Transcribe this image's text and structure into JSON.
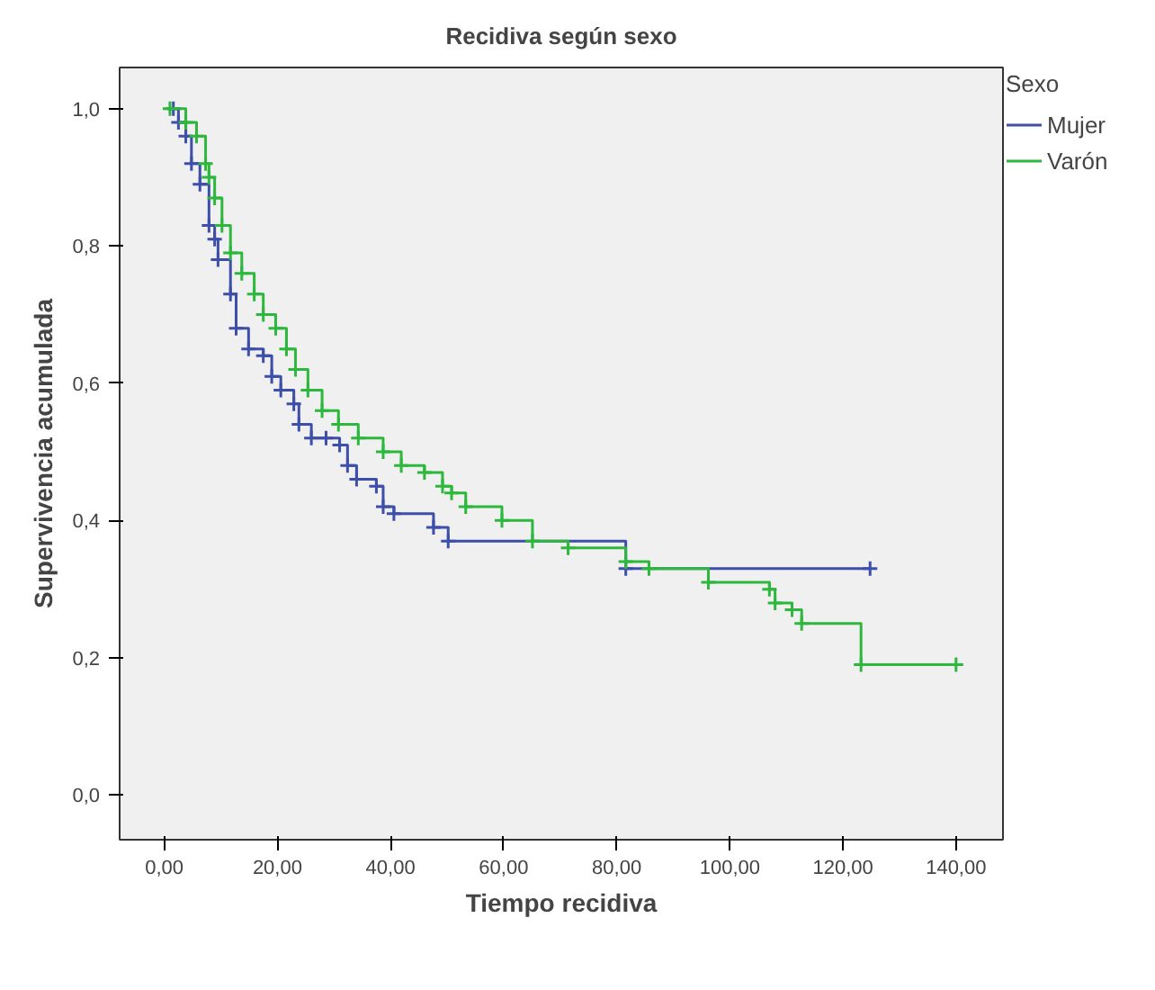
{
  "chart_data": {
    "type": "step",
    "title": "Recidiva según sexo",
    "xlabel": "Tiempo recidiva",
    "ylabel": "Supervivencia acumulada",
    "legend_title": "Sexo",
    "series": [
      {
        "name": "Mujer",
        "color": "#3d4fa8",
        "x": [
          1.6,
          2.5,
          3.8,
          4.8,
          6.3,
          7.9,
          8.9,
          9.5,
          11.7,
          12.7,
          14.9,
          17.5,
          19,
          20.6,
          22.9,
          23.8,
          26,
          28.6,
          31,
          32.4,
          34,
          37.5,
          38.7,
          40.6,
          47.6,
          50.2,
          81.6,
          124.8
        ],
        "values": [
          1.0,
          0.98,
          0.96,
          0.92,
          0.89,
          0.83,
          0.81,
          0.78,
          0.73,
          0.68,
          0.65,
          0.64,
          0.61,
          0.59,
          0.57,
          0.54,
          0.52,
          0.52,
          0.51,
          0.48,
          0.46,
          0.45,
          0.42,
          0.41,
          0.39,
          0.37,
          0.33,
          0.33
        ]
      },
      {
        "name": "Varón",
        "color": "#2db83d",
        "x": [
          1,
          3.8,
          5.7,
          7.3,
          7.9,
          8.9,
          10.2,
          11.7,
          13.7,
          15.9,
          17.5,
          19.7,
          21.6,
          23.2,
          25.4,
          27.9,
          30.8,
          34.3,
          38.7,
          41.9,
          46,
          49.2,
          50.8,
          53.3,
          59.7,
          65.1,
          71.4,
          81.6,
          85.7,
          96.2,
          107,
          108,
          111,
          112.7,
          123.2,
          140
        ],
        "values": [
          1.0,
          0.98,
          0.96,
          0.92,
          0.9,
          0.87,
          0.83,
          0.79,
          0.76,
          0.73,
          0.7,
          0.68,
          0.65,
          0.62,
          0.59,
          0.56,
          0.54,
          0.52,
          0.5,
          0.48,
          0.47,
          0.45,
          0.44,
          0.42,
          0.4,
          0.37,
          0.36,
          0.34,
          0.33,
          0.31,
          0.3,
          0.28,
          0.27,
          0.25,
          0.19,
          0.19
        ]
      }
    ],
    "xlim": [
      -7.9,
      148.3
    ],
    "ylim": [
      -0.065,
      1.06
    ],
    "xticks": [
      {
        "value": 0,
        "label": "0,00"
      },
      {
        "value": 20,
        "label": "20,00"
      },
      {
        "value": 40,
        "label": "40,00"
      },
      {
        "value": 60,
        "label": "60,00"
      },
      {
        "value": 80,
        "label": "80,00"
      },
      {
        "value": 100,
        "label": "100,00"
      },
      {
        "value": 120,
        "label": "120,00"
      },
      {
        "value": 140,
        "label": "140,00"
      }
    ],
    "yticks": [
      {
        "value": 0,
        "label": "0,0"
      },
      {
        "value": 0.2,
        "label": "0,2"
      },
      {
        "value": 0.4,
        "label": "0,4"
      },
      {
        "value": 0.6,
        "label": "0,6"
      },
      {
        "value": 0.8,
        "label": "0,8"
      },
      {
        "value": 1.0,
        "label": "1,0"
      }
    ],
    "grid": false,
    "legend": "right",
    "marker": "cross",
    "line_style": "solid"
  }
}
